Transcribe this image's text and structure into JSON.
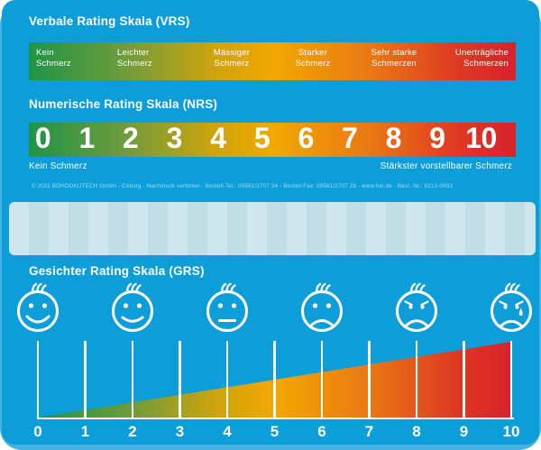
{
  "colors": {
    "card_blue": "#0d9dd9",
    "card_back_blue": "#47b2e1",
    "window_blue": "#c4e1e9",
    "scale_gradient": [
      "#1f9447 0%",
      "#6f9c3c 20%",
      "#cfa30d 38%",
      "#f2a800 50%",
      "#ea7814 70%",
      "#de3a22 88%",
      "#d7222b 100%"
    ],
    "text_white": "#ffffff"
  },
  "vrs": {
    "title": "Verbale Rating Skala (VRS)",
    "labels": [
      {
        "line1": "Kein",
        "line2": "Schmerz"
      },
      {
        "line1": "Leichter",
        "line2": "Schmerz"
      },
      {
        "line1": "Mässiger",
        "line2": "Schmerz"
      },
      {
        "line1": "Starker",
        "line2": "Schmerz"
      },
      {
        "line1": "Sehr starke",
        "line2": "Schmerzen"
      },
      {
        "line1": "Unerträgliche",
        "line2": "Schmerzen"
      }
    ]
  },
  "nrs": {
    "title": "Numerische Rating Skala (NRS)",
    "numbers": [
      "0",
      "1",
      "2",
      "3",
      "4",
      "5",
      "6",
      "7",
      "8",
      "9",
      "10"
    ],
    "min_label": "Kein Schmerz",
    "max_label": "Stärkster vorstellbarer Schmerz"
  },
  "imprint": "© 2011 BOHDOKUTECH GmbH - Coburg - Nachdruck verboten - Bestell-Tel.: 09561/2707 24 - Bestell-Fax: 09561/2707 29 - www.hei.de - Best.-Nr.: 9213-0693",
  "grs": {
    "title": "Gesichter Rating Skala (GRS)",
    "faces": [
      {
        "mood": "smiling-wide",
        "value": 0
      },
      {
        "mood": "smiling",
        "value": 2
      },
      {
        "mood": "neutral",
        "value": 4
      },
      {
        "mood": "sad",
        "value": 6
      },
      {
        "mood": "very-sad",
        "value": 8
      },
      {
        "mood": "crying",
        "value": 10
      }
    ],
    "ticks": [
      "0",
      "1",
      "2",
      "3",
      "4",
      "5",
      "6",
      "7",
      "8",
      "9",
      "10"
    ]
  }
}
